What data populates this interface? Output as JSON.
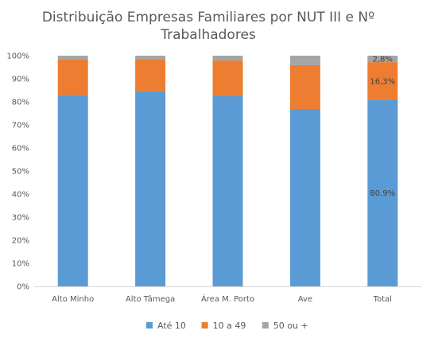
{
  "chart_data": {
    "type": "bar",
    "stacked": true,
    "percent_stacked": true,
    "title_lines": [
      "Distribuição Empresas Familiares por NUT III e Nº",
      "Trabalhadores"
    ],
    "categories": [
      "Alto Minho",
      "Alto Tâmega",
      "Área M. Porto",
      "Ave",
      "Total"
    ],
    "series": [
      {
        "name": "Até 10",
        "color": "#5B9BD5",
        "values": [
          82.9,
          84.6,
          82.6,
          76.9,
          80.9
        ]
      },
      {
        "name": "10 a 49",
        "color": "#ED7D31",
        "values": [
          15.5,
          13.9,
          15.3,
          19.0,
          16.3
        ]
      },
      {
        "name": "50 ou +",
        "color": "#A5A5A5",
        "values": [
          1.6,
          1.5,
          2.1,
          4.1,
          2.8
        ]
      }
    ],
    "data_labels": [
      {
        "category": "Total",
        "series": "Até 10",
        "text": "80,9%"
      },
      {
        "category": "Total",
        "series": "10 a 49",
        "text": "16,3%"
      },
      {
        "category": "Total",
        "series": "50 ou +",
        "text": "2,8%"
      }
    ],
    "ylim": [
      0,
      100
    ],
    "yticks": [
      "0%",
      "10%",
      "20%",
      "30%",
      "40%",
      "50%",
      "60%",
      "70%",
      "80%",
      "90%",
      "100%"
    ],
    "grid": false,
    "legend_position": "bottom"
  }
}
